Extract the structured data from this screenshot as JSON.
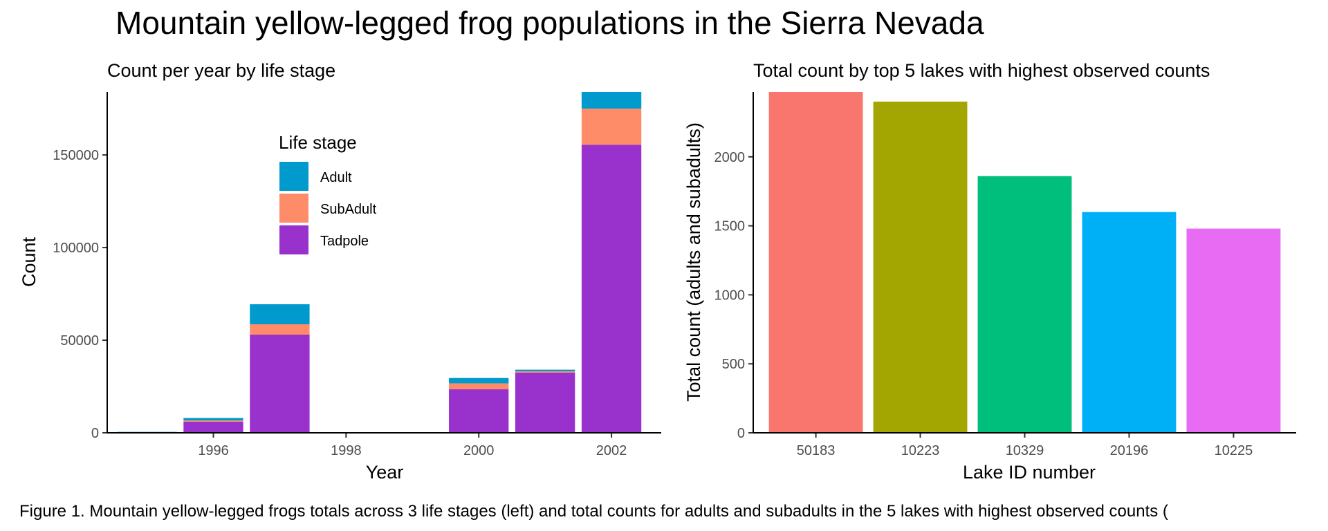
{
  "title": "Mountain yellow-legged frog populations in the Sierra Nevada",
  "caption": "Figure 1. Mountain yellow-legged frogs totals across 3 life stages (left) and total counts for adults and subadults in the 5 lakes with highest observed counts (",
  "chart_data": [
    {
      "type": "bar",
      "stacked": true,
      "subtitle": "Count per year by life stage",
      "xlabel": "Year",
      "ylabel": "Count",
      "x": [
        1995,
        1996,
        1997,
        2000,
        2001,
        2002
      ],
      "xticks": [
        1996,
        1998,
        2000,
        2002
      ],
      "xlim": [
        1994.4,
        2002.75
      ],
      "yticks": [
        0,
        50000,
        100000,
        150000
      ],
      "ylim": [
        0,
        184000
      ],
      "legend": {
        "title": "Life stage",
        "placement": "inside-top-center"
      },
      "series": [
        {
          "name": "Tadpole",
          "color": "#9932CC",
          "values": [
            100,
            6000,
            53000,
            23500,
            32500,
            155500
          ]
        },
        {
          "name": "SubAdult",
          "color": "#FF8C69",
          "values": [
            100,
            700,
            5600,
            3200,
            700,
            19500
          ]
        },
        {
          "name": "Adult",
          "color": "#009ACD",
          "values": [
            300,
            1300,
            10800,
            2900,
            900,
            9000
          ]
        }
      ]
    },
    {
      "type": "bar",
      "subtitle": "Total count by top 5 lakes with highest observed counts",
      "xlabel": "Lake ID number",
      "ylabel": "Total count (adults and subadults)",
      "categories": [
        "50183",
        "10223",
        "10329",
        "20196",
        "10225"
      ],
      "values": [
        2470,
        2400,
        1860,
        1600,
        1480
      ],
      "colors": [
        "#F8766D",
        "#A3A500",
        "#00BF7D",
        "#00B0F6",
        "#E76BF3"
      ],
      "yticks": [
        0,
        500,
        1000,
        1500,
        2000
      ],
      "ylim": [
        0,
        2470
      ]
    }
  ]
}
